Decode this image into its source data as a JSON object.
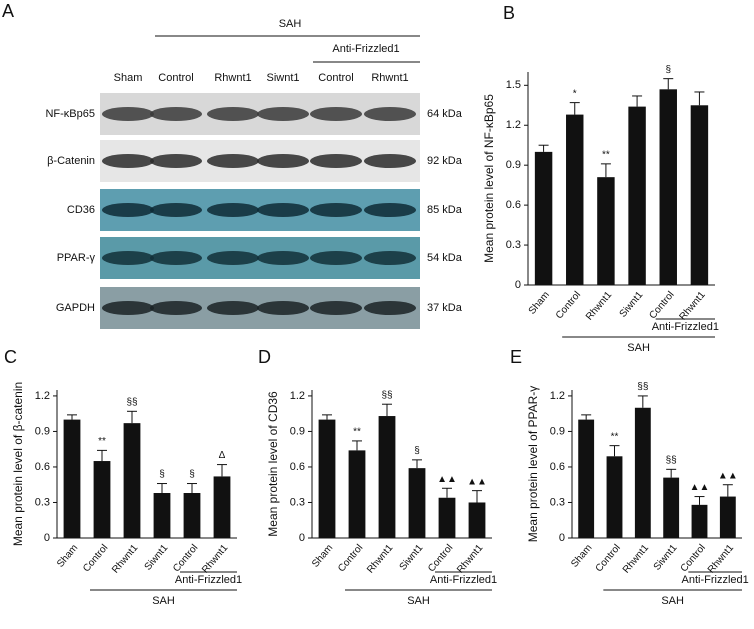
{
  "panel_a": {
    "label": "A",
    "group": "SAH",
    "subgroup": "Anti-Frizzled1",
    "lanes": [
      "Sham",
      "Control",
      "Rhwnt1",
      "Siwnt1",
      "Control",
      "Rhwnt1"
    ],
    "rows": [
      {
        "name": "NF-κBp65",
        "size": "64 kDa"
      },
      {
        "name": "β-Catenin",
        "size": "92 kDa"
      },
      {
        "name": "CD36",
        "size": "85 kDa"
      },
      {
        "name": "PPAR-γ",
        "size": "54 kDa"
      },
      {
        "name": "GAPDH",
        "size": "37 kDa"
      }
    ]
  },
  "chart_data": [
    {
      "type": "bar",
      "panel": "B",
      "ylabel": "Mean protein level of NF-κBp65",
      "categories": [
        "Sham",
        "Control",
        "Rhwnt1",
        "Siwnt1",
        "Control",
        "Rhwnt1"
      ],
      "values": [
        1.0,
        1.28,
        0.81,
        1.34,
        1.47,
        1.35
      ],
      "errors": [
        0.05,
        0.09,
        0.1,
        0.08,
        0.08,
        0.1
      ],
      "annotations": [
        null,
        "*",
        "**",
        null,
        "§",
        null
      ],
      "group": "SAH",
      "subgroup": "Anti-Frizzled1",
      "color": "#111111",
      "ylim": [
        0,
        1.6
      ],
      "yticks": [
        0,
        0.3,
        0.6,
        0.9,
        1.2,
        1.5
      ]
    },
    {
      "type": "bar",
      "panel": "C",
      "ylabel": "Mean protein level of β-catenin",
      "categories": [
        "Sham",
        "Control",
        "Rhwnt1",
        "Siwnt1",
        "Control",
        "Rhwnt1"
      ],
      "values": [
        1.0,
        0.65,
        0.97,
        0.38,
        0.38,
        0.52
      ],
      "errors": [
        0.04,
        0.09,
        0.1,
        0.08,
        0.08,
        0.1
      ],
      "annotations": [
        null,
        "**",
        "§§",
        "§",
        "§",
        "Δ"
      ],
      "group": "SAH",
      "subgroup": "Anti-Frizzled1",
      "color": "#111111",
      "ylim": [
        0,
        1.25
      ],
      "yticks": [
        0,
        0.3,
        0.6,
        0.9,
        1.2
      ]
    },
    {
      "type": "bar",
      "panel": "D",
      "ylabel": "Mean protein level of CD36",
      "categories": [
        "Sham",
        "Control",
        "Rhwnt1",
        "Siwnt1",
        "Control",
        "Rhwnt1"
      ],
      "values": [
        1.0,
        0.74,
        1.03,
        0.59,
        0.34,
        0.3
      ],
      "errors": [
        0.04,
        0.08,
        0.1,
        0.07,
        0.08,
        0.1
      ],
      "annotations": [
        null,
        "**",
        "§§",
        "§",
        "▲▲",
        "▲▲"
      ],
      "group": "SAH",
      "subgroup": "Anti-Frizzled1",
      "color": "#111111",
      "ylim": [
        0,
        1.25
      ],
      "yticks": [
        0,
        0.3,
        0.6,
        0.9,
        1.2
      ]
    },
    {
      "type": "bar",
      "panel": "E",
      "ylabel": "Mean protein level of PPAR-γ",
      "categories": [
        "Sham",
        "Control",
        "Rhwnt1",
        "Siwnt1",
        "Control",
        "Rhwnt1"
      ],
      "values": [
        1.0,
        0.69,
        1.1,
        0.51,
        0.28,
        0.35
      ],
      "errors": [
        0.04,
        0.09,
        0.1,
        0.07,
        0.07,
        0.1
      ],
      "annotations": [
        null,
        "**",
        "§§",
        "§§",
        "▲▲",
        "▲▲"
      ],
      "group": "SAH",
      "subgroup": "Anti-Frizzled1",
      "color": "#111111",
      "ylim": [
        0,
        1.25
      ],
      "yticks": [
        0,
        0.3,
        0.6,
        0.9,
        1.2
      ]
    }
  ]
}
